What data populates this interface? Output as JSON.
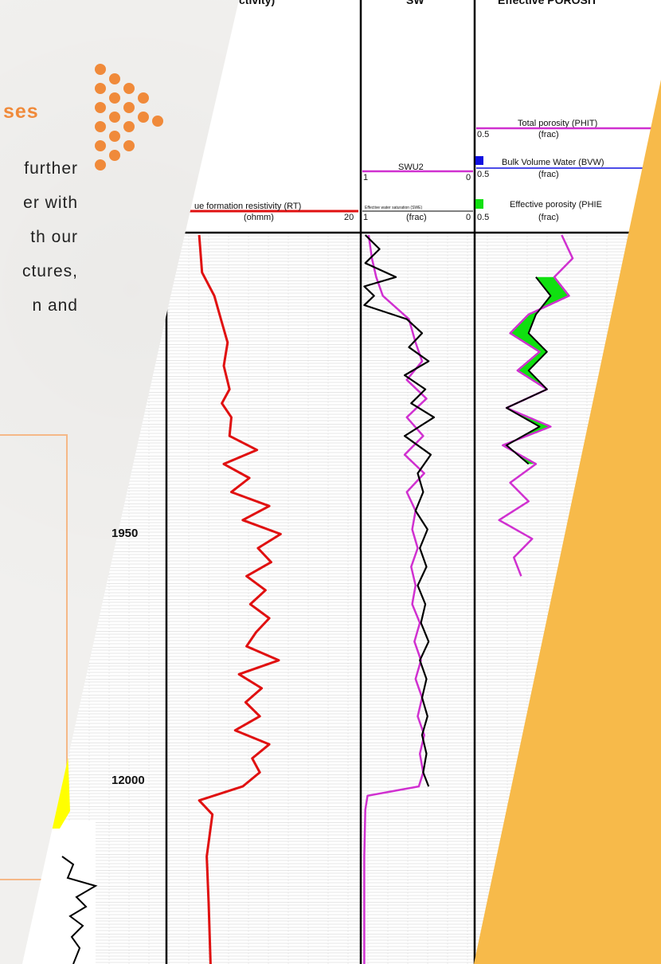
{
  "page": {
    "heading_fragment": "ses",
    "body_lines": [
      "further",
      "er with",
      "th our",
      "ctures,",
      "n   and"
    ]
  },
  "colors": {
    "accent_orange": "#f08a3a",
    "panel_yellow": "#f7ba4a",
    "rt_curve": "#e01010",
    "phit_curve": "#d030d0",
    "fill_green": "#10e010",
    "fill_yellow": "#ffff00",
    "bvw_marker": "#1010e0"
  },
  "chart_data": {
    "type": "line",
    "title": "",
    "depth_labels": [
      "1950",
      "12000"
    ],
    "depth_axis": {
      "range": [
        11907,
        12063
      ],
      "reversed": true
    },
    "tracks": [
      {
        "id": "rt",
        "header_top": "",
        "header_curve_label": "ue formation resistivity (RT)",
        "header_unit": "(ohmm)",
        "scale_right": "20",
        "series": [
          {
            "name": "ue formation resistivity (RT)",
            "depth": [
              11907,
              11915,
              11920,
              11925,
              11930,
              11935,
              11940,
              11943,
              11946,
              11950,
              11953,
              11956,
              11959,
              11962,
              11965,
              11968,
              11971,
              11974,
              11977,
              11980,
              11983,
              11986,
              11989,
              11992,
              11995,
              11998,
              12001,
              12004,
              12007,
              12010,
              12013,
              12016,
              12019,
              12022,
              12025,
              12028,
              12031,
              12040,
              12050,
              12063
            ],
            "value": [
              3.2,
              3.5,
              4.8,
              5.5,
              6.2,
              5.8,
              6.4,
              5.6,
              6.6,
              6.4,
              9.3,
              5.8,
              8.5,
              6.6,
              10.6,
              7.8,
              11.8,
              9.4,
              10.8,
              8.2,
              10.2,
              8.6,
              10.6,
              9.2,
              8.2,
              11.6,
              7.4,
              9.8,
              8.1,
              9.6,
              7.0,
              10.6,
              8.8,
              9.6,
              7.8,
              3.2,
              4.6,
              4.0,
              4.2,
              4.4
            ]
          }
        ]
      },
      {
        "id": "sw",
        "header_top": "SW",
        "header_curve_label": "SWU2",
        "header_curve_label_small": "Effective water saturation (SWE)",
        "header_unit": "(frac)",
        "scale_left": "1",
        "scale_right": "0",
        "series": [
          {
            "name": "SWU2",
            "depth": [
              11907,
              11912,
              11916,
              11920,
              11925,
              11930,
              11934,
              11938,
              11942,
              11946,
              11950,
              11954,
              11958,
              11962,
              11966,
              11970,
              11974,
              11978,
              11982,
              11986,
              11990,
              11994,
              11998,
              12002,
              12006,
              12010,
              12014,
              12018,
              12022,
              12025,
              12027,
              12030,
              12040,
              12050,
              12063
            ],
            "value": [
              0.95,
              0.92,
              0.88,
              0.82,
              0.58,
              0.52,
              0.46,
              0.6,
              0.42,
              0.6,
              0.45,
              0.62,
              0.44,
              0.6,
              0.52,
              0.55,
              0.5,
              0.56,
              0.52,
              0.55,
              0.48,
              0.53,
              0.47,
              0.52,
              0.46,
              0.5,
              0.44,
              0.48,
              0.45,
              0.49,
              0.96,
              0.98,
              0.99,
              0.99,
              0.99
            ]
          },
          {
            "name": "Effective water saturation (SWE)",
            "depth": [
              11907,
              11910,
              11913,
              11916,
              11918,
              11920,
              11922,
              11925,
              11928,
              11931,
              11934,
              11937,
              11940,
              11943,
              11946,
              11950,
              11954,
              11958,
              11962,
              11966,
              11970,
              11974,
              11978,
              11982,
              11986,
              11990,
              11994,
              11998,
              12002,
              12006,
              12010,
              12014,
              12018,
              12022,
              12025
            ],
            "value": [
              0.98,
              0.85,
              0.98,
              0.7,
              0.99,
              0.9,
              0.99,
              0.6,
              0.46,
              0.58,
              0.4,
              0.62,
              0.43,
              0.56,
              0.35,
              0.62,
              0.38,
              0.5,
              0.45,
              0.52,
              0.41,
              0.48,
              0.42,
              0.5,
              0.43,
              0.47,
              0.4,
              0.48,
              0.42,
              0.46,
              0.41,
              0.46,
              0.42,
              0.45,
              0.4
            ]
          }
        ]
      },
      {
        "id": "por",
        "header_top": "Effective POROSIT",
        "header_curve_label": "Total porosity (PHIT)",
        "header_curve_label_2": "Bulk Volume Water (BVW)",
        "header_curve_label_3": "Effective porosity (PHIE",
        "header_unit": "(frac)",
        "scale_left": "0.5",
        "series": [
          {
            "name": "Total porosity (PHIT)",
            "depth": [
              11907,
              11912,
              11916,
              11920,
              11924,
              11928,
              11932,
              11936,
              11940,
              11944,
              11948,
              11952,
              11956,
              11960,
              11964,
              11968,
              11972,
              11976,
              11980
            ],
            "value": [
              0.27,
              0.24,
              0.29,
              0.25,
              0.36,
              0.41,
              0.33,
              0.39,
              0.31,
              0.42,
              0.3,
              0.43,
              0.34,
              0.41,
              0.36,
              0.44,
              0.35,
              0.4,
              0.38
            ]
          },
          {
            "name": "Bulk Volume Water (BVW)",
            "depth": [
              11916,
              11920,
              11924,
              11928,
              11932,
              11936,
              11940,
              11944,
              11948,
              11952,
              11956
            ],
            "value": [
              0.34,
              0.3,
              0.34,
              0.36,
              0.31,
              0.36,
              0.31,
              0.42,
              0.33,
              0.42,
              0.36
            ]
          }
        ]
      }
    ]
  }
}
